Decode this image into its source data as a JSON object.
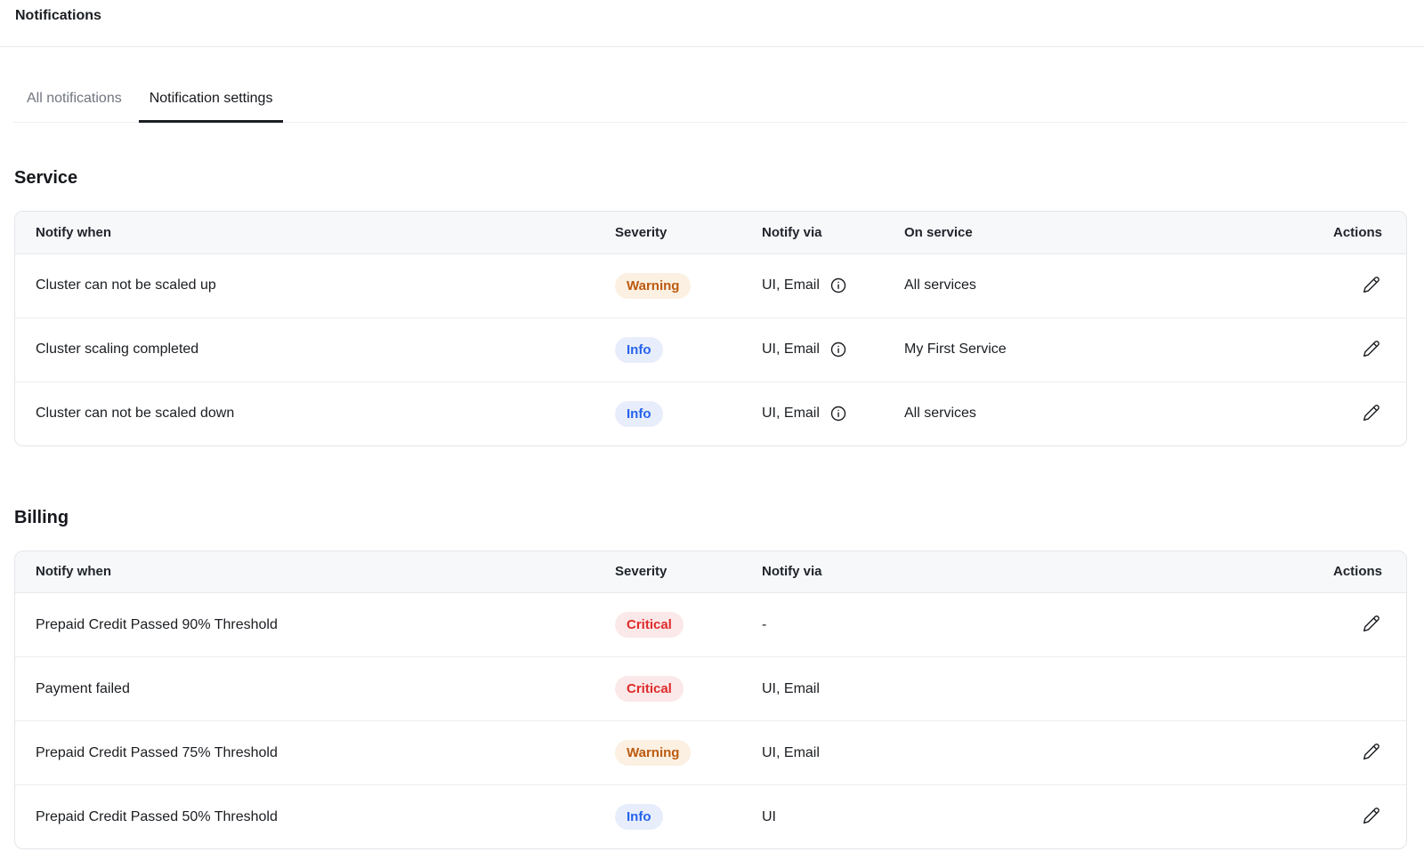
{
  "page": {
    "title": "Notifications"
  },
  "tabs": [
    {
      "label": "All notifications",
      "active": false
    },
    {
      "label": "Notification settings",
      "active": true
    }
  ],
  "badge_colors": {
    "Warning": {
      "bg": "#FBF0E1",
      "text": "#BC5A10"
    },
    "Info": {
      "bg": "#E8EDFB",
      "text": "#2563EB"
    },
    "Critical": {
      "bg": "#FBE8E8",
      "text": "#DE2B2B"
    }
  },
  "icons": {
    "edit": "pencil-icon",
    "notify_via_details": "info-circle-icon"
  },
  "sections": [
    {
      "heading": "Service",
      "columns": [
        "Notify when",
        "Severity",
        "Notify via",
        "On service",
        "Actions"
      ],
      "rows": [
        {
          "notify_when": "Cluster can not be scaled up",
          "severity": "Warning",
          "notify_via": "UI, Email",
          "notify_via_info_icon": true,
          "on_service": "All services",
          "editable": true
        },
        {
          "notify_when": "Cluster scaling completed",
          "severity": "Info",
          "notify_via": "UI, Email",
          "notify_via_info_icon": true,
          "on_service": "My First Service",
          "editable": true
        },
        {
          "notify_when": "Cluster can not be scaled down",
          "severity": "Info",
          "notify_via": "UI, Email",
          "notify_via_info_icon": true,
          "on_service": "All services",
          "editable": true
        }
      ]
    },
    {
      "heading": "Billing",
      "columns": [
        "Notify when",
        "Severity",
        "Notify via",
        "Actions"
      ],
      "rows": [
        {
          "notify_when": "Prepaid Credit Passed 90% Threshold",
          "severity": "Critical",
          "notify_via": "-",
          "notify_via_info_icon": false,
          "editable": true
        },
        {
          "notify_when": "Payment failed",
          "severity": "Critical",
          "notify_via": "UI, Email",
          "notify_via_info_icon": false,
          "editable": false
        },
        {
          "notify_when": "Prepaid Credit Passed 75% Threshold",
          "severity": "Warning",
          "notify_via": "UI, Email",
          "notify_via_info_icon": false,
          "editable": true
        },
        {
          "notify_when": "Prepaid Credit Passed 50% Threshold",
          "severity": "Info",
          "notify_via": "UI",
          "notify_via_info_icon": false,
          "editable": true
        }
      ]
    }
  ]
}
